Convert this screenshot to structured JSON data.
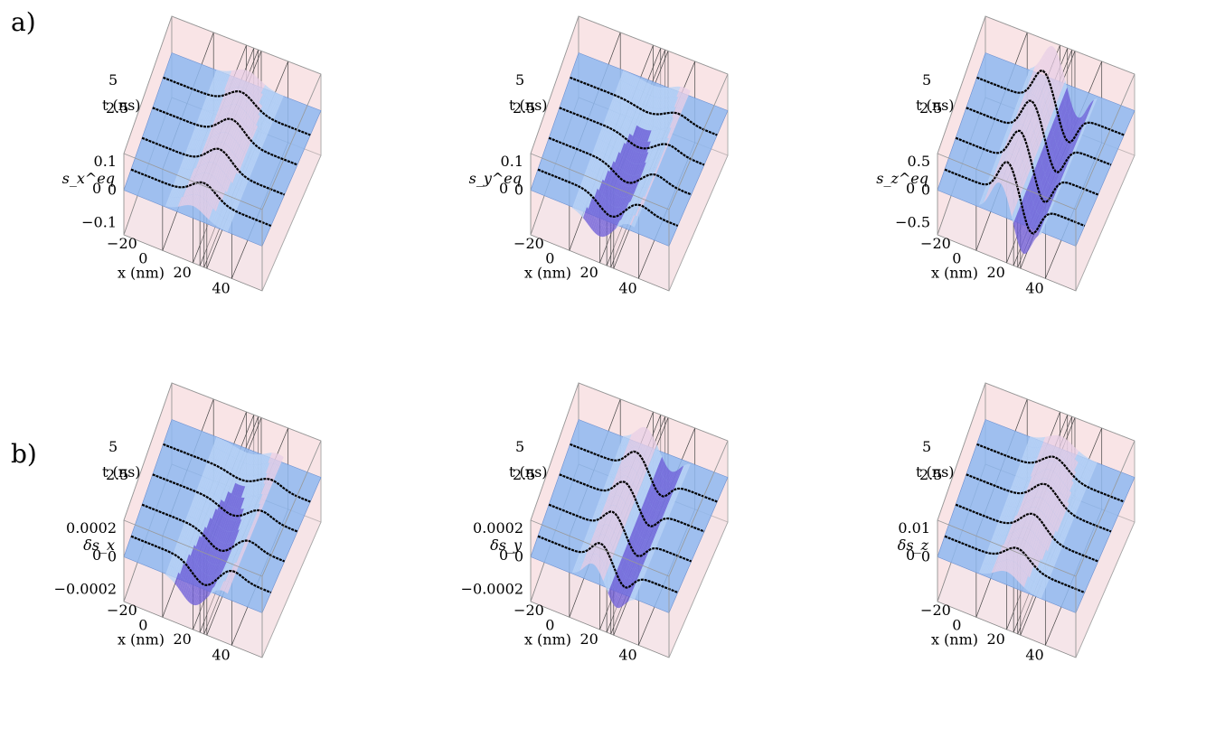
{
  "panel_letters": [
    "a)",
    "b)"
  ],
  "chart_data": [
    {
      "type": "surface",
      "row": "a",
      "zlabel": "s_x^eq",
      "xlabel": "x (nm)",
      "tlabel": "t (ns)",
      "x_ticks": [
        "−20",
        "0",
        "20",
        "40"
      ],
      "t_ticks": [
        "0",
        "2.5",
        "5"
      ],
      "z_ticks": [
        "0.1",
        "0",
        "−0.1"
      ],
      "zlim": [
        -0.1,
        0.1
      ],
      "shape": "bump",
      "amplitude": 0.55
    },
    {
      "type": "surface",
      "row": "a",
      "zlabel": "s_y^eq",
      "xlabel": "x (nm)",
      "tlabel": "t (ns)",
      "x_ticks": [
        "−20",
        "0",
        "20",
        "40"
      ],
      "t_ticks": [
        "0",
        "2.5",
        "5"
      ],
      "z_ticks": [
        "0.1",
        "0",
        ""
      ],
      "zlim": [
        -0.1,
        0.1
      ],
      "shape": "dip",
      "amplitude": 0.5
    },
    {
      "type": "surface",
      "row": "a",
      "zlabel": "s_z^eq",
      "xlabel": "x (nm)",
      "tlabel": "t (ns)",
      "x_ticks": [
        "−20",
        "0",
        "20",
        "40"
      ],
      "t_ticks": [
        "0",
        "2.5",
        "5"
      ],
      "z_ticks": [
        "0.5",
        "0",
        "−0.5"
      ],
      "zlim": [
        -0.5,
        0.5
      ],
      "shape": "wave",
      "amplitude": 0.9
    },
    {
      "type": "surface",
      "row": "b",
      "zlabel": "δs_x",
      "xlabel": "x (nm)",
      "tlabel": "t (ns)",
      "x_ticks": [
        "−20",
        "0",
        "20",
        "40"
      ],
      "t_ticks": [
        "0",
        "2.5",
        "5"
      ],
      "z_ticks": [
        "0.0002",
        "0",
        "−0.0002"
      ],
      "zlim": [
        -0.0002,
        0.0002
      ],
      "shape": "dip",
      "amplitude": 0.55
    },
    {
      "type": "surface",
      "row": "b",
      "zlabel": "δs_y",
      "xlabel": "x (nm)",
      "tlabel": "t (ns)",
      "x_ticks": [
        "−20",
        "0",
        "20",
        "40"
      ],
      "t_ticks": [
        "0",
        "2.5",
        "5"
      ],
      "z_ticks": [
        "0.0002",
        "0",
        "−0.0002"
      ],
      "zlim": [
        -0.0002,
        0.0002
      ],
      "shape": "wave",
      "amplitude": 0.5
    },
    {
      "type": "surface",
      "row": "b",
      "zlabel": "δs_z",
      "xlabel": "x (nm)",
      "tlabel": "t (ns)",
      "x_ticks": [
        "−20",
        "0",
        "20",
        "40"
      ],
      "t_ticks": [
        "0",
        "2.5",
        "5"
      ],
      "z_ticks": [
        "0.01",
        "0",
        ""
      ],
      "zlim": [
        -0.01,
        0.01
      ],
      "shape": "bump",
      "amplitude": 0.6
    }
  ]
}
